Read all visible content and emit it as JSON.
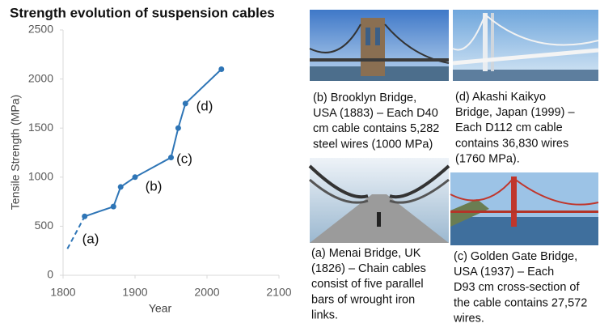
{
  "chart_data": {
    "type": "line",
    "title": "Strength evolution of suspension cables",
    "xlabel": "Year",
    "ylabel": "Tensile Strength (MPa)",
    "xlim": [
      1800,
      2100
    ],
    "xticks": [
      1800,
      1900,
      2000,
      2100
    ],
    "ylim": [
      0,
      2500
    ],
    "yticks": [
      0,
      500,
      1000,
      1500,
      2000,
      2500
    ],
    "grid": false,
    "series": [
      {
        "color": "#2e75b6",
        "line_style": "solid",
        "markers": true,
        "x": [
          1830,
          1870,
          1880,
          1900,
          1950,
          1960,
          1970,
          2020
        ],
        "values": [
          600,
          700,
          900,
          1000,
          1200,
          1500,
          1750,
          2100
        ]
      },
      {
        "color": "#2e75b6",
        "line_style": "dashed",
        "markers": false,
        "x": [
          1806,
          1830
        ],
        "values": [
          270,
          600
        ]
      }
    ],
    "annotations": [
      "(a)",
      "(b)",
      "(c)",
      "(d)"
    ]
  },
  "panels": [
    {
      "caption": [
        "(b) Brooklyn Bridge,",
        "USA (1883) – Each D40",
        "cm cable contains 5,282",
        "steel wires (1000 MPa)"
      ]
    },
    {
      "caption": [
        "(d) Akashi Kaikyo",
        "Bridge, Japan (1999) –",
        "Each D112 cm cable",
        "contains 36,830 wires",
        "(1760 MPa)."
      ]
    },
    {
      "caption": [
        "(a) Menai Bridge, UK",
        "(1826) – Chain cables",
        "consist of five parallel",
        "bars of wrought iron",
        "links."
      ]
    },
    {
      "caption": [
        "(c) Golden Gate Bridge,",
        "USA (1937) – Each",
        "D93 cm cross-section of",
        "the cable contains 27,572",
        "wires."
      ]
    }
  ]
}
